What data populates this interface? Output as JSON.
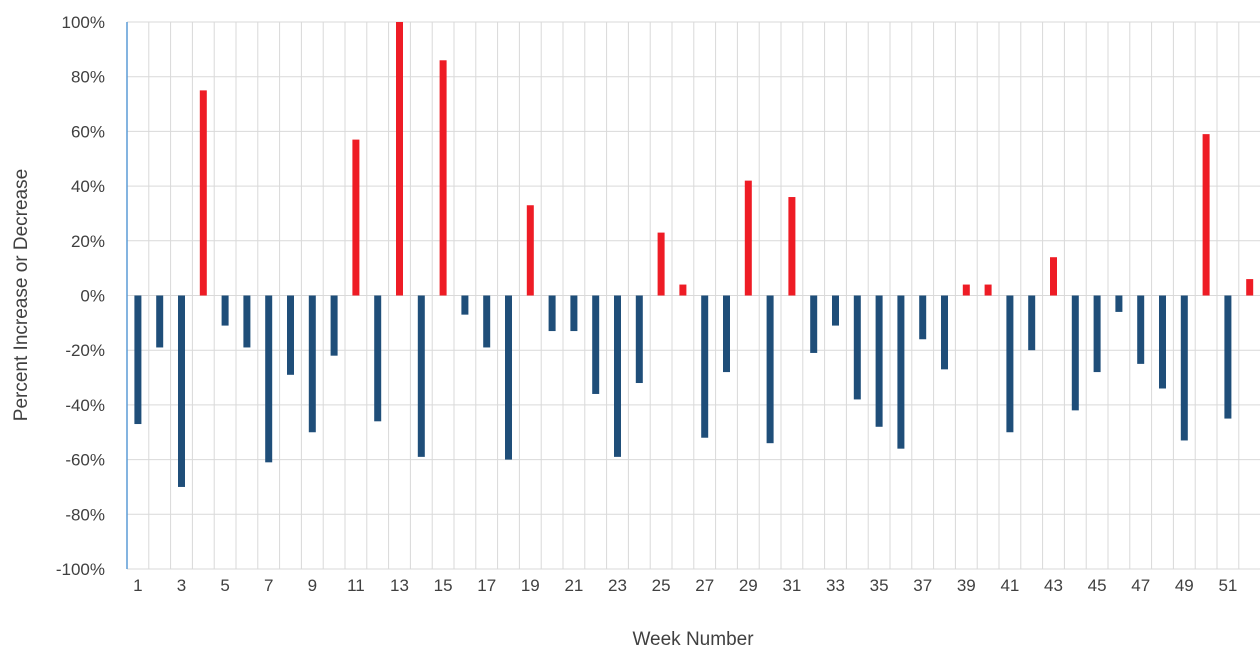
{
  "chart_data": {
    "type": "bar",
    "title": "",
    "xlabel": "Week Number",
    "ylabel": "Percent Increase or Decrease",
    "ylim": [
      -100,
      100
    ],
    "y_ticks": [
      "100%",
      "80%",
      "60%",
      "40%",
      "20%",
      "0%",
      "-20%",
      "-40%",
      "-60%",
      "-80%",
      "-100%"
    ],
    "x_tick_labels": [
      "1",
      "3",
      "5",
      "7",
      "9",
      "11",
      "13",
      "15",
      "17",
      "19",
      "21",
      "23",
      "25",
      "27",
      "29",
      "31",
      "33",
      "35",
      "37",
      "39",
      "41",
      "43",
      "45",
      "47",
      "49",
      "51"
    ],
    "categories": [
      1,
      2,
      3,
      4,
      5,
      6,
      7,
      8,
      9,
      10,
      11,
      12,
      13,
      14,
      15,
      16,
      17,
      18,
      19,
      20,
      21,
      22,
      23,
      24,
      25,
      26,
      27,
      28,
      29,
      30,
      31,
      32,
      33,
      34,
      35,
      36,
      37,
      38,
      39,
      40,
      41,
      42,
      43,
      44,
      45,
      46,
      47,
      48,
      49,
      50,
      51,
      52
    ],
    "values": [
      -47,
      -19,
      -70,
      75,
      -11,
      -19,
      -61,
      -29,
      -50,
      -22,
      57,
      -46,
      100,
      -59,
      86,
      -7,
      -19,
      -60,
      33,
      -13,
      -13,
      -36,
      -59,
      -32,
      23,
      4,
      -52,
      -28,
      42,
      -54,
      36,
      -21,
      -11,
      -38,
      -48,
      -56,
      -16,
      -27,
      4,
      4,
      -50,
      -20,
      14,
      -42,
      -28,
      -6,
      -25,
      -34,
      -53,
      59,
      -45,
      6
    ],
    "grid": true,
    "legend": "none",
    "colors": {
      "positive": "#ee1c25",
      "negative": "#1f4e79",
      "grid": "#d9d9d9",
      "axis": "#5b9bd5",
      "text": "#404040"
    }
  }
}
